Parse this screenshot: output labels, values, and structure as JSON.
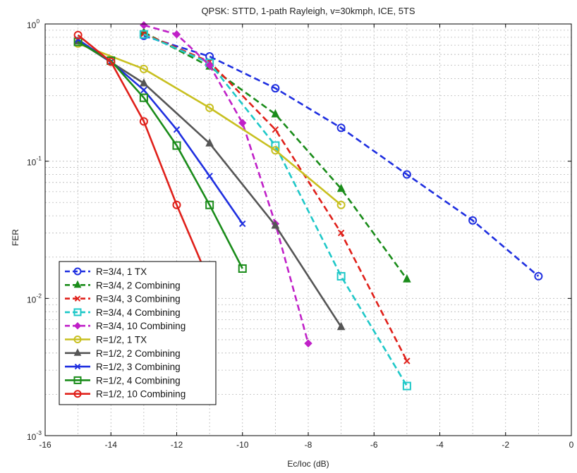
{
  "chart_data": {
    "type": "line",
    "title": "QPSK: STTD, 1-path Rayleigh, v=30kmph, ICE, 5TS",
    "xlabel": "Ec/Ioc (dB)",
    "ylabel": "FER",
    "xlim": [
      -16,
      0
    ],
    "ylim": [
      0.001,
      1
    ],
    "yscale": "log",
    "grid": true,
    "legend_position": "bottom-left",
    "x_ticks": [
      "-16",
      "-14",
      "-12",
      "-10",
      "-8",
      "-6",
      "-4",
      "-2",
      "0"
    ],
    "y_ticks": [
      {
        "base": "10",
        "exp": "0"
      },
      {
        "base": "10",
        "exp": "-1"
      },
      {
        "base": "10",
        "exp": "-2"
      },
      {
        "base": "10",
        "exp": "-3"
      }
    ],
    "series": [
      {
        "name": "R=3/4, 1 TX",
        "color": "#1f2fe0",
        "dash": "dashed",
        "marker": "circle",
        "x": [
          -13,
          -11,
          -9,
          -7,
          -5,
          -3,
          -1
        ],
        "y": [
          0.82,
          0.58,
          0.34,
          0.175,
          0.08,
          0.037,
          0.0145
        ]
      },
      {
        "name": "R=3/4, 2 Combining",
        "color": "#1a8c1a",
        "dash": "dashed",
        "marker": "triangle",
        "x": [
          -13,
          -11,
          -9,
          -7,
          -5
        ],
        "y": [
          0.87,
          0.49,
          0.22,
          0.063,
          0.0138
        ]
      },
      {
        "name": "R=3/4, 3 Combining",
        "color": "#e0201a",
        "dash": "dashed",
        "marker": "x",
        "x": [
          -13,
          -11,
          -9,
          -7,
          -5
        ],
        "y": [
          0.85,
          0.53,
          0.17,
          0.03,
          0.0035
        ]
      },
      {
        "name": "R=3/4, 4 Combining",
        "color": "#1fc8c8",
        "dash": "dashed",
        "marker": "square",
        "x": [
          -13,
          -11,
          -9,
          -7,
          -5
        ],
        "y": [
          0.84,
          0.52,
          0.13,
          0.0145,
          0.0023
        ]
      },
      {
        "name": "R=3/4, 10 Combining",
        "color": "#c020c8",
        "dash": "dashed",
        "marker": "diamond",
        "x": [
          -13,
          -12,
          -11,
          -10,
          -9,
          -8
        ],
        "y": [
          0.98,
          0.84,
          0.5,
          0.19,
          0.035,
          0.0047
        ]
      },
      {
        "name": "R=1/2, 1 TX",
        "color": "#c8c020",
        "dash": "solid",
        "marker": "circle",
        "x": [
          -15,
          -13,
          -11,
          -9,
          -7
        ],
        "y": [
          0.72,
          0.47,
          0.245,
          0.12,
          0.048
        ]
      },
      {
        "name": "R=1/2, 2 Combining",
        "color": "#555555",
        "dash": "solid",
        "marker": "triangle",
        "x": [
          -15,
          -13,
          -11,
          -9,
          -7
        ],
        "y": [
          0.75,
          0.37,
          0.135,
          0.034,
          0.0062
        ]
      },
      {
        "name": "R=1/2, 3 Combining",
        "color": "#1f2fe0",
        "dash": "solid",
        "marker": "x",
        "x": [
          -15,
          -14,
          -13,
          -12,
          -11,
          -10
        ],
        "y": [
          0.77,
          0.53,
          0.33,
          0.17,
          0.078,
          0.035
        ]
      },
      {
        "name": "R=1/2, 4 Combining",
        "color": "#1a8c1a",
        "dash": "solid",
        "marker": "square",
        "x": [
          -15,
          -14,
          -13,
          -12,
          -11,
          -10
        ],
        "y": [
          0.74,
          0.54,
          0.29,
          0.13,
          0.048,
          0.0165
        ]
      },
      {
        "name": "R=1/2, 10 Combining",
        "color": "#e0201a",
        "dash": "solid",
        "marker": "circle",
        "x": [
          -15,
          -14,
          -13,
          -12,
          -11.1
        ],
        "y": [
          0.83,
          0.53,
          0.195,
          0.048,
          0.015
        ]
      }
    ]
  }
}
